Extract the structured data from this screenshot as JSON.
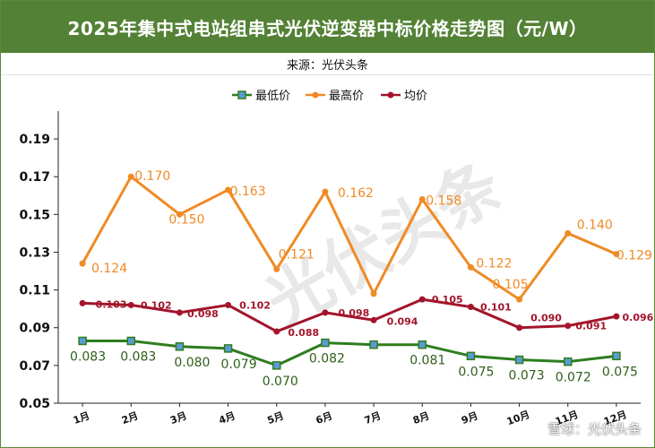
{
  "header": {
    "title": "2025年集中式电站组串式光伏逆变器中标价格走势图（元/W）",
    "source": "来源：光伏头条"
  },
  "watermark": {
    "text": "雪球：光伏头条",
    "diagonal": "光伏头条"
  },
  "colors": {
    "title_bg": "#538135",
    "low": "#2e7d1e",
    "high": "#f08a24",
    "avg": "#a3142a"
  },
  "chart_data": {
    "type": "line",
    "categories": [
      "1月",
      "2月",
      "3月",
      "4月",
      "5月",
      "6月",
      "7月",
      "8月",
      "9月",
      "10月",
      "11月",
      "12月"
    ],
    "series": [
      {
        "name": "最低价",
        "key": "low",
        "marker": "square",
        "values": [
          0.083,
          0.083,
          0.08,
          0.079,
          0.07,
          0.082,
          0.081,
          0.081,
          0.075,
          0.073,
          0.072,
          0.075
        ],
        "labels": [
          "0.083",
          "0.083",
          "0.080",
          "0.079",
          "0.070",
          "0.082",
          "",
          "0.081",
          "0.075",
          "0.073",
          "0.072",
          "0.075"
        ]
      },
      {
        "name": "最高价",
        "key": "high",
        "marker": "circle",
        "values": [
          0.124,
          0.17,
          0.15,
          0.163,
          0.121,
          0.162,
          0.108,
          0.158,
          0.122,
          0.105,
          0.14,
          0.129
        ],
        "labels": [
          "0.124",
          "0.170",
          "0.150",
          "0.163",
          "0.121",
          "0.162",
          "",
          "0.158",
          "0.122",
          "0.105",
          "0.140",
          "0.129"
        ]
      },
      {
        "name": "均价",
        "key": "avg",
        "marker": "circle",
        "values": [
          0.103,
          0.102,
          0.098,
          0.102,
          0.088,
          0.098,
          0.094,
          0.105,
          0.101,
          0.09,
          0.091,
          0.096
        ],
        "labels": [
          "0.103",
          "0.102",
          "0.098",
          "0.102",
          "0.088",
          "0.098",
          "0.094",
          "0.105",
          "0.101",
          "0.090",
          "0.091",
          "0.096"
        ]
      }
    ],
    "ylim": [
      0.05,
      0.2
    ],
    "yticks": [
      "0.05",
      "0.07",
      "0.09",
      "0.11",
      "0.13",
      "0.15",
      "0.17",
      "0.19"
    ],
    "legend": "top-center",
    "grid": false
  }
}
